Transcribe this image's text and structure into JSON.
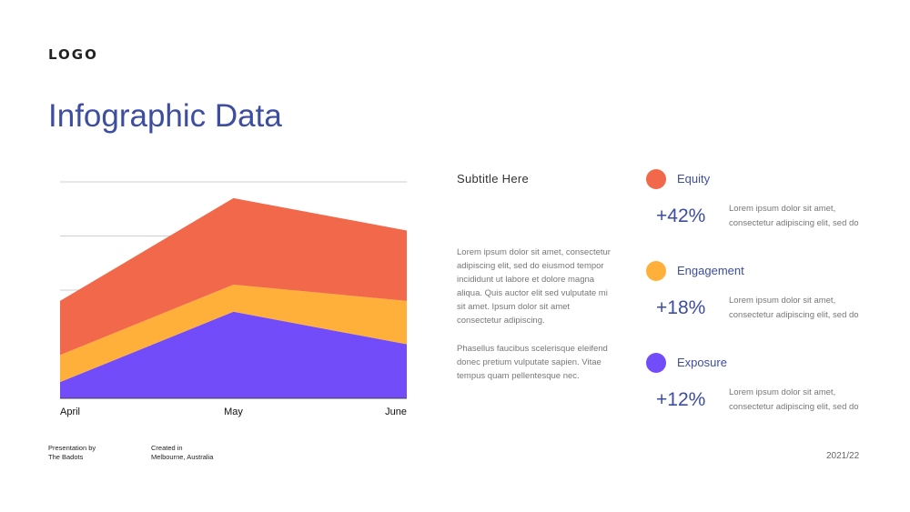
{
  "logo": "LOGO",
  "title": "Infographic Data",
  "subtitle": "Subtitle Here",
  "paragraphs": [
    "Lorem ipsum dolor sit amet, consectetur adipiscing elit, sed do eiusmod tempor incididunt ut labore et dolore magna aliqua. Quis auctor elit sed vulputate mi sit amet. Ipsum dolor sit amet consectetur adipiscing.",
    "Phasellus faucibus scelerisque eleifend donec pretium vulputate sapien. Vitae tempus quam pellentesque nec."
  ],
  "metrics": [
    {
      "label": "Equity",
      "value": "+42%",
      "desc": "Lorem ipsum dolor sit amet, consectetur adipiscing elit, sed do",
      "color": "#f2684a"
    },
    {
      "label": "Engagement",
      "value": "+18%",
      "desc": "Lorem ipsum dolor sit amet, consectetur adipiscing elit, sed do",
      "color": "#ffb03a"
    },
    {
      "label": "Exposure",
      "value": "+12%",
      "desc": "Lorem ipsum dolor sit amet, consectetur adipiscing elit, sed do",
      "color": "#724cf9"
    }
  ],
  "footer": {
    "presented_line1": "Presentation by",
    "presented_line2": "The Badots",
    "created_line1": "Created in",
    "created_line2": "Melbourne, Australia",
    "year": "2021/22"
  },
  "chart_data": {
    "type": "area",
    "stacked": true,
    "categories": [
      "April",
      "May",
      "June"
    ],
    "series": [
      {
        "values": [
          3,
          16,
          10
        ],
        "color": "#724cf9"
      },
      {
        "values": [
          5,
          5,
          8
        ],
        "color": "#ffb03a"
      },
      {
        "values": [
          10,
          16,
          13
        ],
        "color": "#f2684a"
      }
    ],
    "ylim": [
      0,
      40
    ],
    "gridlines": [
      10,
      20,
      30,
      40
    ],
    "legend": "none"
  }
}
